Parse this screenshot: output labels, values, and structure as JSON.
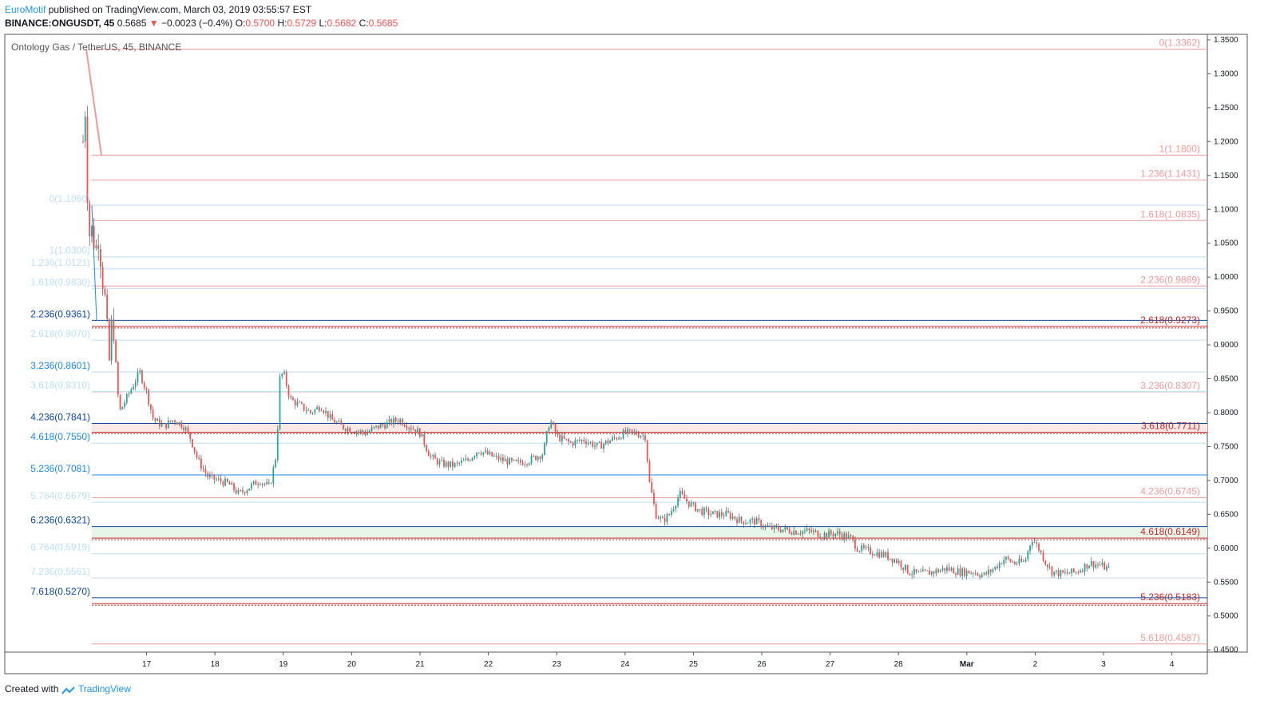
{
  "header": {
    "author": "EuroMotif",
    "published_text": "published on TradingView.com, March 03, 2019 03:55:57 EST",
    "symbol": "BINANCE:ONGUSDT, 45",
    "last": "0.5685",
    "change_arrow": "▼",
    "change": "−0.0023 (−0.4%)",
    "open_label": "O:",
    "open": "0.5700",
    "high_label": "H:",
    "high": "0.5729",
    "low_label": "L:",
    "low": "0.5682",
    "close_label": "C:",
    "close": "0.5685"
  },
  "footer": {
    "created_with": "Created with",
    "brand": "TradingView"
  },
  "chart_data": {
    "type": "candlestick",
    "title": "Ontology Gas / TetherUS, 45, BINANCE",
    "ylim": [
      0.4467,
      1.3582
    ],
    "y_ticks": [
      "1.3500",
      "1.3000",
      "1.2500",
      "1.2000",
      "1.1500",
      "1.1000",
      "1.0500",
      "1.0000",
      "0.9500",
      "0.9000",
      "0.8500",
      "0.8000",
      "0.7500",
      "0.7000",
      "0.6500",
      "0.6000",
      "0.5500",
      "0.5000",
      "0.4500"
    ],
    "x_ticks": [
      {
        "label": "17",
        "day": 1
      },
      {
        "label": "18",
        "day": 2
      },
      {
        "label": "19",
        "day": 3
      },
      {
        "label": "20",
        "day": 4
      },
      {
        "label": "21",
        "day": 5
      },
      {
        "label": "22",
        "day": 6
      },
      {
        "label": "23",
        "day": 7
      },
      {
        "label": "24",
        "day": 8
      },
      {
        "label": "25",
        "day": 9
      },
      {
        "label": "26",
        "day": 10
      },
      {
        "label": "27",
        "day": 11
      },
      {
        "label": "28",
        "day": 12
      },
      {
        "label": "Mar",
        "day": 13
      },
      {
        "label": "2",
        "day": 14
      },
      {
        "label": "3",
        "day": 15
      },
      {
        "label": "4",
        "day": 16
      }
    ],
    "price_path": [
      [
        0.07,
        1.2
      ],
      [
        0.09,
        1.29
      ],
      [
        0.12,
        1.18
      ],
      [
        0.15,
        1.06
      ],
      [
        0.2,
        1.07
      ],
      [
        0.25,
        1.04
      ],
      [
        0.3,
        1.06
      ],
      [
        0.35,
        1.0
      ],
      [
        0.4,
        0.96
      ],
      [
        0.45,
        0.87
      ],
      [
        0.5,
        0.95
      ],
      [
        0.55,
        0.87
      ],
      [
        0.6,
        0.8
      ],
      [
        0.7,
        0.82
      ],
      [
        0.8,
        0.84
      ],
      [
        0.9,
        0.86
      ],
      [
        1.0,
        0.83
      ],
      [
        1.1,
        0.79
      ],
      [
        1.25,
        0.78
      ],
      [
        1.4,
        0.79
      ],
      [
        1.55,
        0.78
      ],
      [
        1.65,
        0.76
      ],
      [
        1.75,
        0.73
      ],
      [
        1.9,
        0.705
      ],
      [
        2.05,
        0.7
      ],
      [
        2.2,
        0.695
      ],
      [
        2.35,
        0.68
      ],
      [
        2.5,
        0.69
      ],
      [
        2.65,
        0.7
      ],
      [
        2.8,
        0.69
      ],
      [
        2.9,
        0.74
      ],
      [
        2.95,
        0.85
      ],
      [
        3.0,
        0.86
      ],
      [
        3.1,
        0.82
      ],
      [
        3.25,
        0.81
      ],
      [
        3.4,
        0.8
      ],
      [
        3.55,
        0.81
      ],
      [
        3.7,
        0.79
      ],
      [
        3.85,
        0.78
      ],
      [
        4.0,
        0.775
      ],
      [
        4.2,
        0.77
      ],
      [
        4.4,
        0.78
      ],
      [
        4.55,
        0.785
      ],
      [
        4.7,
        0.79
      ],
      [
        4.85,
        0.78
      ],
      [
        5.0,
        0.77
      ],
      [
        5.15,
        0.735
      ],
      [
        5.3,
        0.725
      ],
      [
        5.5,
        0.722
      ],
      [
        5.7,
        0.73
      ],
      [
        5.85,
        0.745
      ],
      [
        6.0,
        0.738
      ],
      [
        6.2,
        0.73
      ],
      [
        6.4,
        0.725
      ],
      [
        6.6,
        0.73
      ],
      [
        6.8,
        0.74
      ],
      [
        6.9,
        0.79
      ],
      [
        7.0,
        0.765
      ],
      [
        7.2,
        0.755
      ],
      [
        7.4,
        0.76
      ],
      [
        7.6,
        0.75
      ],
      [
        7.8,
        0.76
      ],
      [
        8.0,
        0.77
      ],
      [
        8.15,
        0.77
      ],
      [
        8.3,
        0.765
      ],
      [
        8.35,
        0.7
      ],
      [
        8.45,
        0.65
      ],
      [
        8.55,
        0.64
      ],
      [
        8.65,
        0.65
      ],
      [
        8.8,
        0.68
      ],
      [
        8.95,
        0.665
      ],
      [
        9.1,
        0.655
      ],
      [
        9.3,
        0.65
      ],
      [
        9.5,
        0.65
      ],
      [
        9.7,
        0.64
      ],
      [
        9.9,
        0.64
      ],
      [
        10.1,
        0.63
      ],
      [
        10.3,
        0.628
      ],
      [
        10.5,
        0.625
      ],
      [
        10.7,
        0.625
      ],
      [
        10.9,
        0.62
      ],
      [
        11.1,
        0.622
      ],
      [
        11.3,
        0.615
      ],
      [
        11.4,
        0.6
      ],
      [
        11.6,
        0.595
      ],
      [
        11.8,
        0.59
      ],
      [
        12.0,
        0.58
      ],
      [
        12.15,
        0.565
      ],
      [
        12.3,
        0.562
      ],
      [
        12.5,
        0.565
      ],
      [
        12.7,
        0.57
      ],
      [
        12.9,
        0.565
      ],
      [
        13.1,
        0.565
      ],
      [
        13.25,
        0.56
      ],
      [
        13.4,
        0.57
      ],
      [
        13.55,
        0.585
      ],
      [
        13.7,
        0.578
      ],
      [
        13.85,
        0.58
      ],
      [
        13.95,
        0.615
      ],
      [
        14.05,
        0.6
      ],
      [
        14.15,
        0.58
      ],
      [
        14.25,
        0.565
      ],
      [
        14.4,
        0.562
      ],
      [
        14.6,
        0.565
      ],
      [
        14.8,
        0.578
      ],
      [
        14.95,
        0.575
      ],
      [
        15.1,
        0.568
      ]
    ],
    "fib_red": [
      {
        "label": "0(1.3362)",
        "value": 1.3362
      },
      {
        "label": "1(1.1800)",
        "value": 1.18
      },
      {
        "label": "1.236(1.1431)",
        "value": 1.1431
      },
      {
        "label": "1.618(1.0835)",
        "value": 1.0835
      },
      {
        "label": "2.236(0.9869)",
        "value": 0.9869
      },
      {
        "label": "2.618(0.9273)",
        "value": 0.9273
      },
      {
        "label": "3.236(0.8307)",
        "value": 0.8307
      },
      {
        "label": "3.618(0.7711)",
        "value": 0.7711
      },
      {
        "label": "4.236(0.6745)",
        "value": 0.6745
      },
      {
        "label": "4.618(0.6149)",
        "value": 0.6149
      },
      {
        "label": "5.236(0.5183)",
        "value": 0.5183
      },
      {
        "label": "5.618(0.4587)",
        "value": 0.4587
      }
    ],
    "fib_blue": [
      {
        "label": "0(1.1060)",
        "value": 1.106
      },
      {
        "label": "1(1.0300)",
        "value": 1.03
      },
      {
        "label": "1.236(1.0121)",
        "value": 1.0121
      },
      {
        "label": "1.618(0.9830)",
        "value": 0.983
      },
      {
        "label": "2.236(0.9361)",
        "value": 0.9361
      },
      {
        "label": "2.618(0.9070)",
        "value": 0.907
      },
      {
        "label": "3.236(0.8601)",
        "value": 0.8601
      },
      {
        "label": "3.618(0.8310)",
        "value": 0.831
      },
      {
        "label": "4.236(0.7841)",
        "value": 0.7841
      },
      {
        "label": "4.618(0.7550)",
        "value": 0.755
      },
      {
        "label": "5.236(0.7081)",
        "value": 0.7081
      },
      {
        "label": "5.764(0.6679)",
        "value": 0.6679
      },
      {
        "label": "6.236(0.6321)",
        "value": 0.6321
      },
      {
        "label": "6.764(0.5919)",
        "value": 0.5919
      },
      {
        "label": "7.236(0.5561)",
        "value": 0.5561
      },
      {
        "label": "7.618(0.5270)",
        "value": 0.527
      }
    ],
    "emphasized_red": [
      0.9273,
      0.7711,
      0.6149,
      0.5183
    ],
    "emphasized_blue": [
      0.9361,
      0.7841,
      0.6321,
      0.527
    ],
    "colors": {
      "fib_red": "#ef9a9a",
      "fib_red_strong": "#c62828",
      "fib_blue": "#bbdefb",
      "fib_blue_strong": "#0d47a1",
      "fib_blue_mid": "#1e88e5",
      "candle_up": "#26a69a",
      "candle_down": "#ef5350",
      "band_red": "#fde8e8",
      "band_green": "#e8f5e9"
    },
    "grid": false
  }
}
